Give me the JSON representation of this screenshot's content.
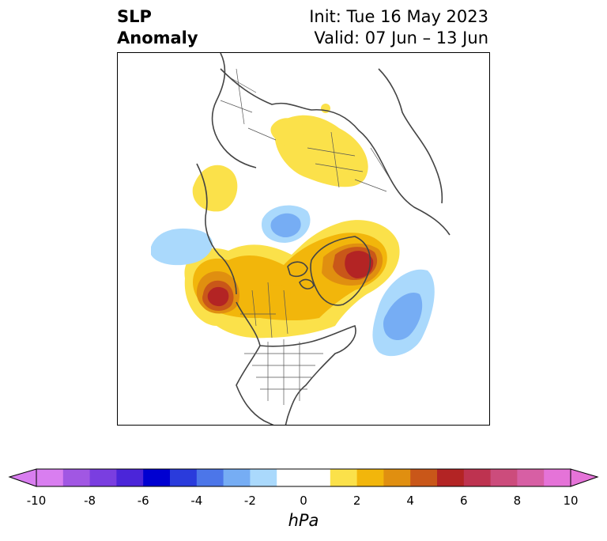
{
  "title": {
    "line1": "SLP",
    "line2": "Anomaly",
    "init": "Init: Tue 16 May 2023",
    "valid": "Valid: 07 Jun – 13 Jun"
  },
  "colorbar": {
    "unit": "hPa",
    "ticks": [
      "-10",
      "-8",
      "-6",
      "-4",
      "-2",
      "0",
      "2",
      "4",
      "6",
      "8",
      "10"
    ],
    "colors": [
      "#d97ef0",
      "#a157e3",
      "#7a3ee0",
      "#4b25d9",
      "#0000d1",
      "#2a3bdc",
      "#4c76e9",
      "#76adf4",
      "#aad9fc",
      "#ffffff",
      "#ffffff",
      "#fbe14a",
      "#f2b60b",
      "#e08f10",
      "#c95719",
      "#b32424",
      "#be3350",
      "#cc4c7c",
      "#d75fa4",
      "#e573d8"
    ],
    "extend_left": "#d97ef0",
    "extend_right": "#e573d8"
  },
  "anomaly_palette": {
    "neg1": "#aad9fc",
    "neg2": "#76adf4",
    "pos1": "#fbe14a",
    "pos2": "#f2b60b",
    "pos3": "#e08f10",
    "pos4": "#c95719",
    "pos5": "#b32424"
  }
}
